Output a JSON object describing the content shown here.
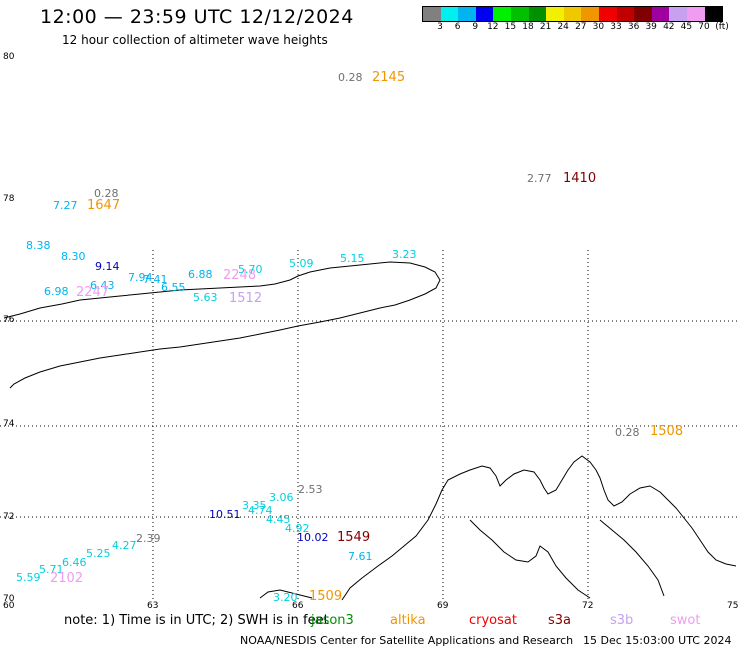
{
  "header": {
    "title": "12:00 — 23:59 UTC 12/12/2024",
    "subtitle": "12 hour collection of altimeter wave heights"
  },
  "legend": {
    "colors": [
      "#808080",
      "#00f0f0",
      "#00b4f0",
      "#0000f0",
      "#00f000",
      "#00c000",
      "#009000",
      "#f0f000",
      "#f0c800",
      "#f09600",
      "#f00000",
      "#c00000",
      "#800000",
      "#a000a0",
      "#c8a0f0",
      "#f09cf0",
      "#000000"
    ],
    "ticks": [
      "3",
      "6",
      "9",
      "12",
      "15",
      "18",
      "21",
      "24",
      "27",
      "30",
      "33",
      "36",
      "39",
      "42",
      "45",
      "70"
    ],
    "unit": "(ft)"
  },
  "axes": {
    "lat_labels": [
      "80",
      "78",
      "76",
      "74",
      "72",
      "70"
    ],
    "lon_labels": [
      "60",
      "63",
      "66",
      "69",
      "72",
      "75"
    ]
  },
  "observations": [
    {
      "t": "0.28",
      "c": "#707070"
    },
    {
      "t": "2145",
      "c": "#f09600",
      "time": true
    },
    {
      "t": "2.77",
      "c": "#707070"
    },
    {
      "t": "1410",
      "c": "#800000",
      "time": true
    },
    {
      "t": "0.28",
      "c": "#707070"
    },
    {
      "t": "7.27",
      "c": "#00b4f0"
    },
    {
      "t": "1647",
      "c": "#f09600",
      "time": true
    },
    {
      "t": "8.38",
      "c": "#00b4f0"
    },
    {
      "t": "8.30",
      "c": "#00b4f0"
    },
    {
      "t": "9.14",
      "c": "#0000c0"
    },
    {
      "t": "7.94",
      "c": "#00b4f0"
    },
    {
      "t": "7.41",
      "c": "#00b4f0"
    },
    {
      "t": "6.88",
      "c": "#00b4f0"
    },
    {
      "t": "2248",
      "c": "#f09cf0",
      "time": true
    },
    {
      "t": "5.70",
      "c": "#00d0e0"
    },
    {
      "t": "5.09",
      "c": "#00d0e0"
    },
    {
      "t": "5.15",
      "c": "#00d0e0"
    },
    {
      "t": "3.23",
      "c": "#00d0e0"
    },
    {
      "t": "6.43",
      "c": "#00b4f0"
    },
    {
      "t": "6.98",
      "c": "#00b4f0"
    },
    {
      "t": "2247",
      "c": "#f09cf0",
      "time": true
    },
    {
      "t": "6.55",
      "c": "#00b4f0"
    },
    {
      "t": "5.63",
      "c": "#00d0e0"
    },
    {
      "t": "1512",
      "c": "#c8a0f0",
      "time": true
    },
    {
      "t": "0.28",
      "c": "#707070"
    },
    {
      "t": "1508",
      "c": "#f09600",
      "time": true
    },
    {
      "t": "2.53",
      "c": "#707070"
    },
    {
      "t": "3.06",
      "c": "#00d0e0"
    },
    {
      "t": "3.35",
      "c": "#00d0e0"
    },
    {
      "t": "4.74",
      "c": "#00d0e0"
    },
    {
      "t": "10.51",
      "c": "#0000c0"
    },
    {
      "t": "4.45",
      "c": "#00d0e0"
    },
    {
      "t": "4.92",
      "c": "#00d0e0"
    },
    {
      "t": "10.02",
      "c": "#0000c0"
    },
    {
      "t": "1549",
      "c": "#800000",
      "time": true
    },
    {
      "t": "7.61",
      "c": "#00b4f0"
    },
    {
      "t": "2.39",
      "c": "#707070"
    },
    {
      "t": "4.27",
      "c": "#00d0e0"
    },
    {
      "t": "5.25",
      "c": "#00d0e0"
    },
    {
      "t": "6.46",
      "c": "#00d0e0"
    },
    {
      "t": "5.71",
      "c": "#00d0e0"
    },
    {
      "t": "5.59",
      "c": "#00d0e0"
    },
    {
      "t": "2102",
      "c": "#f09cf0",
      "time": true
    },
    {
      "t": "3.20",
      "c": "#00d0e0"
    },
    {
      "t": "1509",
      "c": "#f09600",
      "time": true
    }
  ],
  "footer": {
    "note": "note:  1) Time is in UTC; 2) SWH is in feet",
    "satellites": [
      {
        "name": "jason3",
        "color": "#009000"
      },
      {
        "name": "altika",
        "color": "#f09600"
      },
      {
        "name": "cryosat",
        "color": "#f00000"
      },
      {
        "name": "s3a",
        "color": "#800000"
      },
      {
        "name": "s3b",
        "color": "#c8a0f0"
      },
      {
        "name": "swot",
        "color": "#f09cf0"
      }
    ],
    "credit": "NOAA/NESDIS Center for Satellite Applications and Research",
    "stamp": "15 Dec 15:03:00 UTC 2024"
  }
}
